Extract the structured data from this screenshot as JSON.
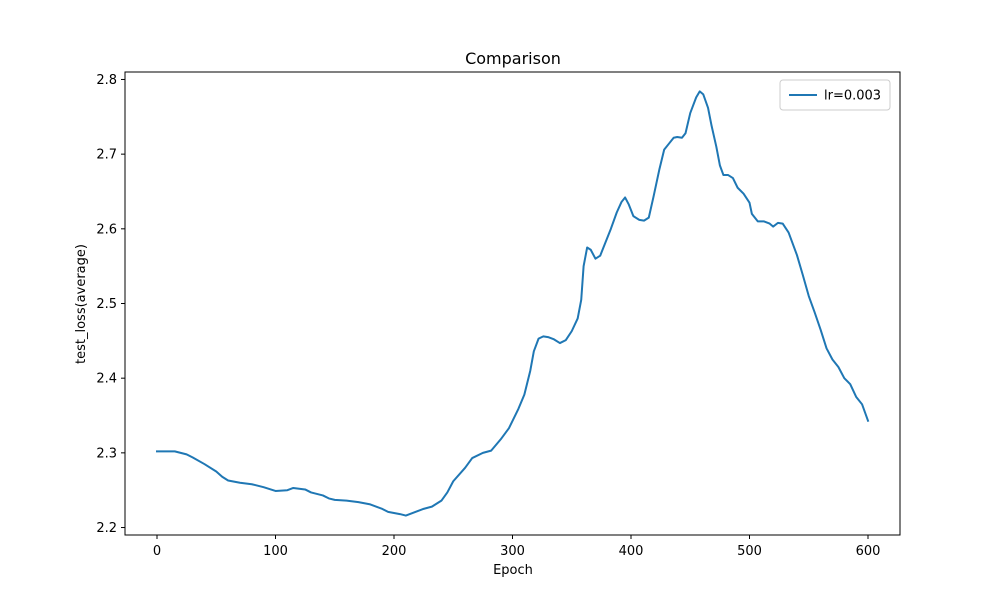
{
  "chart_data": {
    "type": "line",
    "title": "Comparison",
    "xlabel": "Epoch",
    "ylabel": "test_loss(average)",
    "xlim": [
      -27,
      627
    ],
    "ylim": [
      2.19,
      2.81
    ],
    "xticks": [
      0,
      100,
      200,
      300,
      400,
      500,
      600
    ],
    "yticks": [
      2.2,
      2.3,
      2.4,
      2.5,
      2.6,
      2.7,
      2.8
    ],
    "grid": false,
    "legend_position": "top-right",
    "series": [
      {
        "name": "lr=0.003",
        "color": "#1f77b4",
        "points": [
          [
            0,
            2.302
          ],
          [
            10,
            2.302
          ],
          [
            15,
            2.302
          ],
          [
            25,
            2.298
          ],
          [
            30,
            2.294
          ],
          [
            40,
            2.285
          ],
          [
            50,
            2.275
          ],
          [
            55,
            2.268
          ],
          [
            60,
            2.263
          ],
          [
            70,
            2.26
          ],
          [
            80,
            2.258
          ],
          [
            90,
            2.254
          ],
          [
            100,
            2.249
          ],
          [
            110,
            2.25
          ],
          [
            115,
            2.253
          ],
          [
            125,
            2.251
          ],
          [
            130,
            2.247
          ],
          [
            140,
            2.243
          ],
          [
            145,
            2.239
          ],
          [
            150,
            2.237
          ],
          [
            160,
            2.236
          ],
          [
            170,
            2.234
          ],
          [
            180,
            2.231
          ],
          [
            190,
            2.225
          ],
          [
            195,
            2.221
          ],
          [
            205,
            2.218
          ],
          [
            210,
            2.216
          ],
          [
            220,
            2.222
          ],
          [
            225,
            2.225
          ],
          [
            232,
            2.228
          ],
          [
            240,
            2.236
          ],
          [
            245,
            2.247
          ],
          [
            250,
            2.262
          ],
          [
            260,
            2.28
          ],
          [
            266,
            2.293
          ],
          [
            275,
            2.3
          ],
          [
            282,
            2.303
          ],
          [
            290,
            2.318
          ],
          [
            297,
            2.333
          ],
          [
            305,
            2.359
          ],
          [
            310,
            2.378
          ],
          [
            315,
            2.41
          ],
          [
            318,
            2.436
          ],
          [
            322,
            2.453
          ],
          [
            326,
            2.456
          ],
          [
            330,
            2.455
          ],
          [
            335,
            2.452
          ],
          [
            340,
            2.447
          ],
          [
            345,
            2.451
          ],
          [
            350,
            2.463
          ],
          [
            355,
            2.48
          ],
          [
            358,
            2.505
          ],
          [
            360,
            2.55
          ],
          [
            363,
            2.575
          ],
          [
            366,
            2.572
          ],
          [
            370,
            2.56
          ],
          [
            374,
            2.564
          ],
          [
            378,
            2.58
          ],
          [
            383,
            2.6
          ],
          [
            388,
            2.622
          ],
          [
            392,
            2.636
          ],
          [
            395,
            2.642
          ],
          [
            398,
            2.633
          ],
          [
            402,
            2.617
          ],
          [
            407,
            2.612
          ],
          [
            411,
            2.611
          ],
          [
            415,
            2.615
          ],
          [
            419,
            2.643
          ],
          [
            424,
            2.68
          ],
          [
            428,
            2.706
          ],
          [
            432,
            2.714
          ],
          [
            436,
            2.722
          ],
          [
            439,
            2.723
          ],
          [
            443,
            2.722
          ],
          [
            446,
            2.728
          ],
          [
            450,
            2.755
          ],
          [
            455,
            2.776
          ],
          [
            458,
            2.784
          ],
          [
            461,
            2.78
          ],
          [
            465,
            2.762
          ],
          [
            468,
            2.738
          ],
          [
            472,
            2.71
          ],
          [
            475,
            2.685
          ],
          [
            478,
            2.672
          ],
          [
            482,
            2.672
          ],
          [
            486,
            2.668
          ],
          [
            490,
            2.655
          ],
          [
            495,
            2.647
          ],
          [
            500,
            2.635
          ],
          [
            502,
            2.62
          ],
          [
            507,
            2.61
          ],
          [
            512,
            2.61
          ],
          [
            517,
            2.607
          ],
          [
            520,
            2.603
          ],
          [
            524,
            2.608
          ],
          [
            528,
            2.607
          ],
          [
            533,
            2.595
          ],
          [
            540,
            2.565
          ],
          [
            545,
            2.538
          ],
          [
            550,
            2.51
          ],
          [
            555,
            2.488
          ],
          [
            560,
            2.465
          ],
          [
            565,
            2.44
          ],
          [
            570,
            2.425
          ],
          [
            575,
            2.415
          ],
          [
            580,
            2.4
          ],
          [
            585,
            2.392
          ],
          [
            590,
            2.375
          ],
          [
            595,
            2.365
          ],
          [
            600,
            2.343
          ]
        ]
      }
    ]
  }
}
